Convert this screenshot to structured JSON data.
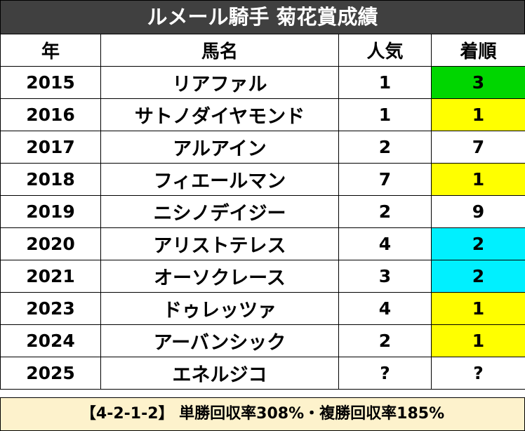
{
  "title": "ルメール騎手 菊花賞成績",
  "headers": {
    "year": "年",
    "horse": "馬名",
    "popularity": "人気",
    "finish": "着順"
  },
  "colors": {
    "title_bg": "#404040",
    "green": "#00d600",
    "yellow": "#ffff00",
    "cyan": "#00f0ff",
    "footer_bg": "#fdf2cc"
  },
  "rows": [
    {
      "year": "2015",
      "horse": "リアファル",
      "popularity": "1",
      "finish": "3",
      "finish_color": "green"
    },
    {
      "year": "2016",
      "horse": "サトノダイヤモンド",
      "popularity": "1",
      "finish": "1",
      "finish_color": "yellow"
    },
    {
      "year": "2017",
      "horse": "アルアイン",
      "popularity": "2",
      "finish": "7",
      "finish_color": "none"
    },
    {
      "year": "2018",
      "horse": "フィエールマン",
      "popularity": "7",
      "finish": "1",
      "finish_color": "yellow"
    },
    {
      "year": "2019",
      "horse": "ニシノデイジー",
      "popularity": "2",
      "finish": "9",
      "finish_color": "none"
    },
    {
      "year": "2020",
      "horse": "アリストテレス",
      "popularity": "4",
      "finish": "2",
      "finish_color": "cyan"
    },
    {
      "year": "2021",
      "horse": "オーソクレース",
      "popularity": "3",
      "finish": "2",
      "finish_color": "cyan"
    },
    {
      "year": "2023",
      "horse": "ドゥレッツァ",
      "popularity": "4",
      "finish": "1",
      "finish_color": "yellow"
    },
    {
      "year": "2024",
      "horse": "アーバンシック",
      "popularity": "2",
      "finish": "1",
      "finish_color": "yellow"
    },
    {
      "year": "2025",
      "horse": "エネルジコ",
      "popularity": "?",
      "finish": "?",
      "finish_color": "none"
    }
  ],
  "footer": "【4-2-1-2】 単勝回収率308%・複勝回収率185%"
}
